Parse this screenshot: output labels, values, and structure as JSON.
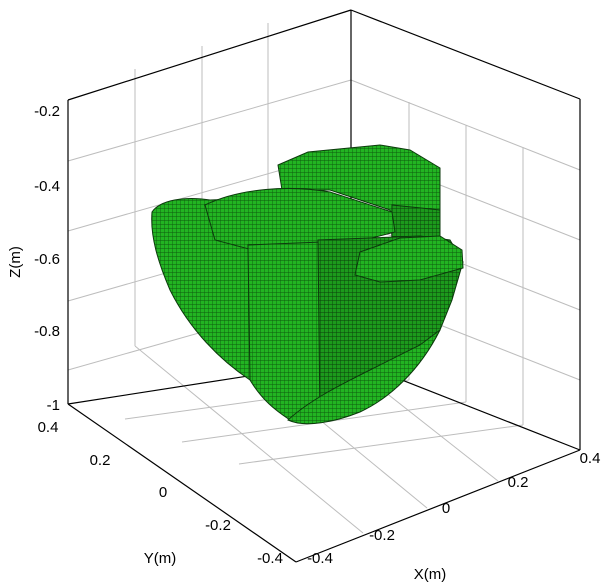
{
  "chart_data": {
    "type": "voxel-3d",
    "title": "",
    "xlabel": "X(m)",
    "ylabel": "Y(m)",
    "zlabel": "Z(m)",
    "x_ticks": [
      "-0.4",
      "-0.2",
      "0",
      "0.2",
      "0.4"
    ],
    "y_ticks": [
      "-0.4",
      "-0.2",
      "0",
      "0.2",
      "0.4"
    ],
    "z_ticks": [
      "-1",
      "-0.8",
      "-0.6",
      "-0.4",
      "-0.2"
    ],
    "xlim": [
      -0.4,
      0.4
    ],
    "ylim": [
      -0.4,
      0.4
    ],
    "zlim": [
      -1,
      -0.2
    ],
    "grid": true,
    "series": [
      {
        "color": "#22b422"
      }
    ]
  }
}
